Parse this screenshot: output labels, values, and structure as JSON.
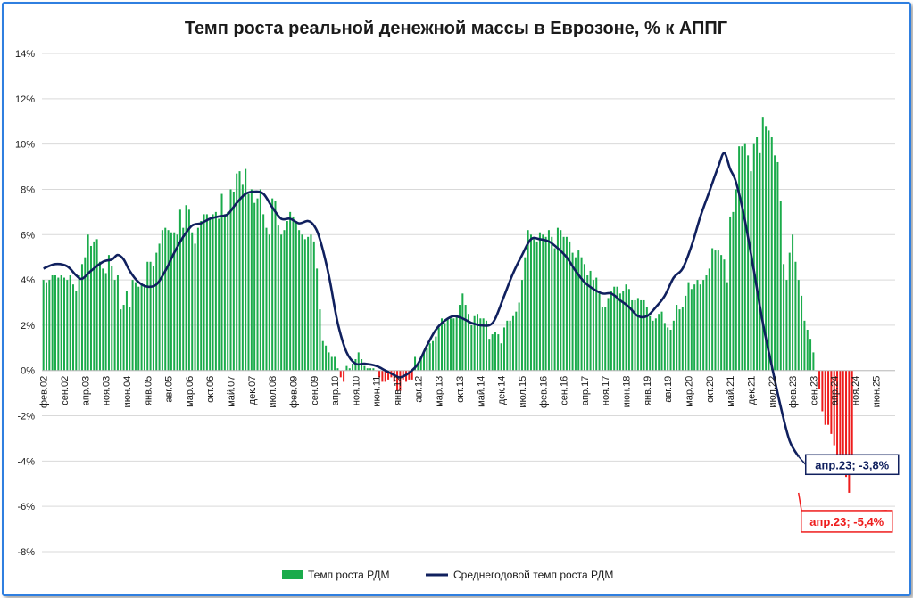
{
  "chart_data": {
    "type": "bar",
    "title": "Темп роста реальной денежной массы в Еврозоне, % к АППГ",
    "xlabel": "",
    "ylabel": "",
    "ylim": [
      -8,
      14
    ],
    "yticks": [
      -8,
      -6,
      -4,
      -2,
      0,
      2,
      4,
      6,
      8,
      10,
      12,
      14
    ],
    "ytick_labels": [
      "-8%",
      "-6%",
      "-4%",
      "-2%",
      "0%",
      "2%",
      "4%",
      "6%",
      "8%",
      "10%",
      "12%",
      "14%"
    ],
    "grid": "horizontal",
    "legend_position": "bottom",
    "x_start": "2002-02",
    "x_end": "2025-12",
    "x_tick_labels": [
      "фев.02",
      "сен.02",
      "апр.03",
      "ноя.03",
      "июн.04",
      "янв.05",
      "авг.05",
      "мар.06",
      "окт.06",
      "май.07",
      "дек.07",
      "июл.08",
      "фев.09",
      "сен.09",
      "апр.10",
      "ноя.10",
      "июн.11",
      "янв.12",
      "авг.12",
      "мар.13",
      "окт.13",
      "май.14",
      "дек.14",
      "июл.15",
      "фев.16",
      "сен.16",
      "апр.17",
      "ноя.17",
      "июн.18",
      "янв.19",
      "авг.19",
      "мар.20",
      "окт.20",
      "май.21",
      "дек.21",
      "июл.22",
      "фев.23",
      "сен.23",
      "апр.24",
      "ноя.24",
      "июн.25"
    ],
    "series": [
      {
        "name": "Темп роста РДМ",
        "kind": "bar",
        "color_positive": "#1aab4b",
        "color_negative": "#ee1c1c",
        "values": [
          4.0,
          3.9,
          4.0,
          4.2,
          4.2,
          4.1,
          4.2,
          4.1,
          4.0,
          4.2,
          3.8,
          3.5,
          4.2,
          4.7,
          5.0,
          6.0,
          5.5,
          5.7,
          5.8,
          4.8,
          4.5,
          4.3,
          5.1,
          4.6,
          4.0,
          4.2,
          2.7,
          2.9,
          3.5,
          2.8,
          4.0,
          3.9,
          3.7,
          3.8,
          3.8,
          4.8,
          4.8,
          4.6,
          5.2,
          5.6,
          6.2,
          6.3,
          6.2,
          6.1,
          6.1,
          6.0,
          7.1,
          6.3,
          7.3,
          7.1,
          6.1,
          5.6,
          6.3,
          6.6,
          6.9,
          6.9,
          6.7,
          6.9,
          7.0,
          6.7,
          7.8,
          6.9,
          7.0,
          8.0,
          7.9,
          8.7,
          8.8,
          8.2,
          8.9,
          7.8,
          8.0,
          7.4,
          7.6,
          8.0,
          6.9,
          6.3,
          6.0,
          7.6,
          7.5,
          6.4,
          6.0,
          6.2,
          6.6,
          7.0,
          6.8,
          6.6,
          6.2,
          6.0,
          5.8,
          5.9,
          6.0,
          5.7,
          4.5,
          2.7,
          1.3,
          1.1,
          0.8,
          0.6,
          0.6,
          0.1,
          -0.3,
          -0.5,
          0.2,
          0.1,
          0.3,
          0.5,
          0.8,
          0.5,
          0.2,
          0.1,
          0.1,
          0.1,
          0.0,
          -0.3,
          -0.5,
          -0.5,
          -0.4,
          -0.3,
          -0.5,
          -0.9,
          -0.9,
          -0.4,
          -0.5,
          -0.4,
          -0.4,
          0.6,
          0.3,
          0.6,
          0.8,
          1.0,
          1.2,
          1.3,
          1.5,
          1.9,
          2.3,
          2.1,
          2.3,
          2.3,
          2.3,
          2.4,
          2.9,
          3.4,
          2.9,
          2.5,
          2.0,
          2.4,
          2.5,
          2.3,
          2.3,
          2.2,
          1.4,
          1.6,
          1.7,
          1.6,
          1.2,
          1.9,
          2.2,
          2.2,
          2.4,
          2.6,
          3.0,
          4.0,
          5.0,
          6.2,
          6.0,
          5.8,
          5.7,
          6.1,
          6.0,
          5.9,
          6.2,
          5.9,
          5.4,
          6.3,
          6.2,
          5.9,
          5.9,
          5.7,
          5.2,
          5.0,
          5.3,
          5.0,
          4.7,
          4.2,
          4.4,
          4.0,
          4.1,
          3.4,
          2.8,
          2.8,
          3.2,
          3.5,
          3.7,
          3.7,
          3.4,
          3.5,
          3.8,
          3.6,
          3.1,
          3.1,
          3.2,
          3.1,
          3.1,
          2.8,
          2.4,
          2.2,
          2.3,
          2.5,
          2.6,
          2.1,
          1.9,
          1.8,
          2.2,
          2.9,
          2.7,
          2.8,
          3.3,
          3.9,
          3.6,
          3.8,
          4.0,
          3.8,
          4.0,
          4.2,
          4.5,
          5.4,
          5.3,
          5.3,
          5.1,
          4.9,
          3.9,
          6.8,
          7.0,
          8.0,
          9.9,
          9.9,
          10.0,
          9.5,
          8.8,
          10.0,
          10.3,
          9.6,
          11.2,
          10.8,
          10.6,
          10.3,
          9.5,
          9.2,
          7.5,
          4.7,
          4.0,
          5.2,
          6.0,
          4.8,
          4.0,
          3.3,
          2.2,
          1.8,
          1.4,
          0.8,
          0.0,
          -0.8,
          -1.8,
          -2.4,
          -2.4,
          -2.8,
          -3.3,
          -4.6,
          -4.6,
          -4.6,
          -4.7,
          -5.4,
          -4.6
        ]
      },
      {
        "name": "Среднегодовой темп роста РДМ",
        "kind": "line",
        "color": "#10205e",
        "points": [
          [
            "2002-02",
            4.5
          ],
          [
            "2002-06",
            4.7
          ],
          [
            "2002-10",
            4.6
          ],
          [
            "2003-01",
            4.2
          ],
          [
            "2003-03",
            4.05
          ],
          [
            "2003-06",
            4.4
          ],
          [
            "2003-10",
            4.8
          ],
          [
            "2004-01",
            4.9
          ],
          [
            "2004-03",
            5.1
          ],
          [
            "2004-05",
            4.9
          ],
          [
            "2004-07",
            4.4
          ],
          [
            "2004-10",
            3.9
          ],
          [
            "2005-01",
            3.7
          ],
          [
            "2005-04",
            3.8
          ],
          [
            "2005-07",
            4.4
          ],
          [
            "2005-10",
            5.2
          ],
          [
            "2006-01",
            5.9
          ],
          [
            "2006-04",
            6.4
          ],
          [
            "2006-07",
            6.5
          ],
          [
            "2006-10",
            6.7
          ],
          [
            "2007-01",
            6.8
          ],
          [
            "2007-04",
            6.9
          ],
          [
            "2007-07",
            7.4
          ],
          [
            "2007-10",
            7.8
          ],
          [
            "2008-01",
            7.9
          ],
          [
            "2008-04",
            7.8
          ],
          [
            "2008-07",
            7.2
          ],
          [
            "2008-10",
            6.7
          ],
          [
            "2009-01",
            6.7
          ],
          [
            "2009-04",
            6.5
          ],
          [
            "2009-07",
            6.6
          ],
          [
            "2009-09",
            6.4
          ],
          [
            "2009-11",
            5.8
          ],
          [
            "2010-02",
            4.2
          ],
          [
            "2010-05",
            2.1
          ],
          [
            "2010-08",
            0.8
          ],
          [
            "2010-11",
            0.3
          ],
          [
            "2011-02",
            0.3
          ],
          [
            "2011-06",
            0.2
          ],
          [
            "2011-09",
            0.0
          ],
          [
            "2011-12",
            -0.2
          ],
          [
            "2012-02",
            -0.3
          ],
          [
            "2012-05",
            -0.1
          ],
          [
            "2012-08",
            0.3
          ],
          [
            "2012-11",
            1.1
          ],
          [
            "2013-02",
            1.8
          ],
          [
            "2013-05",
            2.2
          ],
          [
            "2013-08",
            2.4
          ],
          [
            "2013-11",
            2.3
          ],
          [
            "2014-02",
            2.1
          ],
          [
            "2014-05",
            2.0
          ],
          [
            "2014-08",
            2.0
          ],
          [
            "2014-10",
            2.3
          ],
          [
            "2015-01",
            3.3
          ],
          [
            "2015-04",
            4.3
          ],
          [
            "2015-07",
            5.1
          ],
          [
            "2015-10",
            5.8
          ],
          [
            "2016-01",
            5.8
          ],
          [
            "2016-04",
            5.7
          ],
          [
            "2016-07",
            5.4
          ],
          [
            "2016-10",
            5.0
          ],
          [
            "2017-01",
            4.4
          ],
          [
            "2017-04",
            3.9
          ],
          [
            "2017-07",
            3.6
          ],
          [
            "2017-10",
            3.4
          ],
          [
            "2018-01",
            3.4
          ],
          [
            "2018-04",
            3.1
          ],
          [
            "2018-07",
            2.8
          ],
          [
            "2018-10",
            2.4
          ],
          [
            "2019-01",
            2.4
          ],
          [
            "2019-04",
            2.8
          ],
          [
            "2019-07",
            3.3
          ],
          [
            "2019-10",
            4.1
          ],
          [
            "2020-01",
            4.5
          ],
          [
            "2020-04",
            5.5
          ],
          [
            "2020-07",
            6.8
          ],
          [
            "2020-10",
            7.9
          ],
          [
            "2021-01",
            9.0
          ],
          [
            "2021-03",
            9.6
          ],
          [
            "2021-05",
            8.9
          ],
          [
            "2021-07",
            8.3
          ],
          [
            "2021-10",
            6.6
          ],
          [
            "2022-01",
            4.4
          ],
          [
            "2022-04",
            2.1
          ],
          [
            "2022-07",
            0.2
          ],
          [
            "2022-10",
            -1.6
          ],
          [
            "2023-01",
            -3.1
          ],
          [
            "2023-04",
            -3.8
          ]
        ]
      }
    ],
    "annotations": [
      {
        "text": "апр.23; -3,8%",
        "series": "Среднегодовой темп роста РДМ",
        "x": "2023-04",
        "y": -3.8,
        "color": "#10205e"
      },
      {
        "text": "апр.23; -5,4%",
        "series": "Темп роста РДМ",
        "x": "2023-04",
        "y": -5.4,
        "color": "#ee1c1c"
      }
    ]
  }
}
